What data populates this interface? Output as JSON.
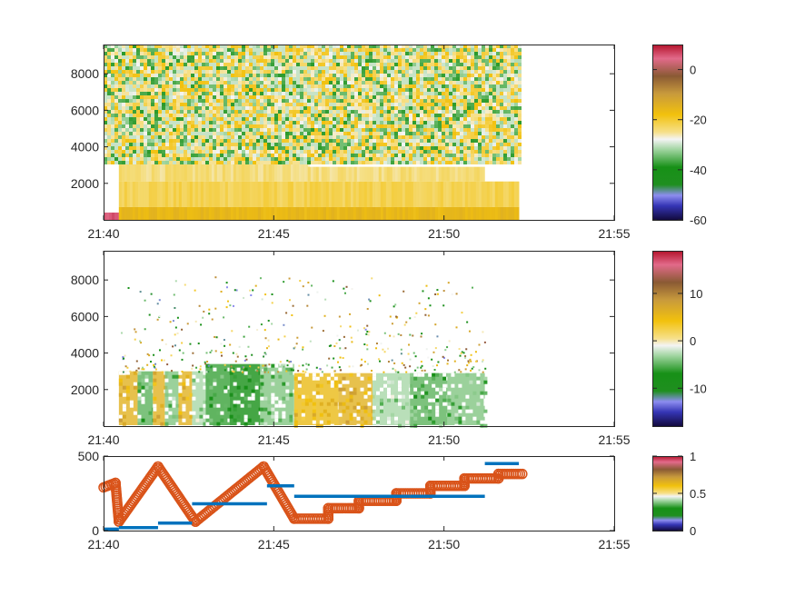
{
  "chart_data": [
    {
      "type": "heatmap",
      "x_tick_labels": [
        "21:40",
        "21:45",
        "21:50",
        "21:55"
      ],
      "x_ticks_min": [
        0,
        5,
        10,
        15
      ],
      "xlim_min": [
        0,
        15
      ],
      "y_tick_labels": [
        "2000",
        "4000",
        "6000",
        "8000"
      ],
      "y_ticks": [
        2000,
        4000,
        6000,
        8000
      ],
      "ylim": [
        0,
        9600
      ],
      "data_extent_min": [
        0,
        12.2
      ],
      "colorbar": {
        "ticks": [
          0,
          -20,
          -40,
          -60
        ],
        "tick_labels": [
          "0",
          "-20",
          "-40",
          "-60"
        ],
        "range": [
          -60,
          10
        ]
      },
      "regions": [
        {
          "x0": 0.0,
          "x1": 0.45,
          "y0": 0,
          "y1": 400,
          "v": 5
        },
        {
          "x0": 0.45,
          "x1": 12.2,
          "y0": 0,
          "y1": 700,
          "v": -16
        },
        {
          "x0": 0.45,
          "x1": 12.2,
          "y0": 700,
          "y1": 2100,
          "v": -22
        },
        {
          "x0": 0.45,
          "x1": 6.0,
          "y0": 2100,
          "y1": 3200,
          "v": -24
        },
        {
          "x0": 6.0,
          "x1": 11.2,
          "y0": 2100,
          "y1": 2900,
          "v": -24
        },
        {
          "x0": 0.0,
          "x1": 12.2,
          "y0": 3200,
          "y1": 9600,
          "v": -33,
          "noisy": true
        }
      ]
    },
    {
      "type": "heatmap",
      "x_tick_labels": [
        "21:40",
        "21:45",
        "21:50",
        "21:55"
      ],
      "x_ticks_min": [
        0,
        5,
        10,
        15
      ],
      "xlim_min": [
        0,
        15
      ],
      "y_tick_labels": [
        "2000",
        "4000",
        "6000",
        "8000"
      ],
      "y_ticks": [
        2000,
        4000,
        6000,
        8000
      ],
      "ylim": [
        0,
        9600
      ],
      "colorbar": {
        "ticks": [
          10,
          0,
          -10
        ],
        "tick_labels": [
          "10",
          "0",
          "-10"
        ],
        "range": [
          -18,
          19
        ]
      },
      "segments": [
        {
          "x0": 0.45,
          "x1": 1.0,
          "v": 6
        },
        {
          "x0": 1.0,
          "x1": 1.45,
          "v": -5
        },
        {
          "x0": 1.45,
          "x1": 1.8,
          "v": 6
        },
        {
          "x0": 1.8,
          "x1": 2.2,
          "v": -4
        },
        {
          "x0": 2.2,
          "x1": 2.6,
          "v": 6
        },
        {
          "x0": 2.6,
          "x1": 3.0,
          "v": -3
        },
        {
          "x0": 3.0,
          "x1": 3.7,
          "v": -6
        },
        {
          "x0": 3.7,
          "x1": 4.6,
          "v": -7
        },
        {
          "x0": 4.6,
          "x1": 5.6,
          "v": -4
        },
        {
          "x0": 5.6,
          "x1": 6.9,
          "v": 5
        },
        {
          "x0": 6.9,
          "x1": 7.9,
          "v": 6
        },
        {
          "x0": 7.9,
          "x1": 9.0,
          "v": -3
        },
        {
          "x0": 9.0,
          "x1": 10.1,
          "v": -5
        },
        {
          "x0": 10.1,
          "x1": 11.2,
          "v": -4
        }
      ]
    },
    {
      "type": "line",
      "x_tick_labels": [
        "21:40",
        "21:45",
        "21:50",
        "21:55"
      ],
      "x_ticks_min": [
        0,
        5,
        10,
        15
      ],
      "xlim_min": [
        0,
        15
      ],
      "y_tick_labels": [
        "0",
        "500"
      ],
      "y_ticks": [
        0,
        500
      ],
      "ylim": [
        0,
        500
      ],
      "colorbar": {
        "ticks": [
          1,
          0.5,
          0
        ],
        "tick_labels": [
          "1",
          "0.5",
          "0"
        ],
        "range": [
          0,
          1
        ]
      },
      "series": [
        {
          "kind": "steps",
          "color": "#0072bd",
          "steps": [
            {
              "x0": 0.0,
              "x1": 0.45,
              "y": 10
            },
            {
              "x0": 0.45,
              "x1": 1.6,
              "y": 20
            },
            {
              "x0": 1.6,
              "x1": 2.6,
              "y": 50
            },
            {
              "x0": 2.6,
              "x1": 4.8,
              "y": 180
            },
            {
              "x0": 4.8,
              "x1": 5.6,
              "y": 300
            },
            {
              "x0": 5.6,
              "x1": 7.9,
              "y": 230
            },
            {
              "x0": 7.9,
              "x1": 9.0,
              "y": 230
            },
            {
              "x0": 9.0,
              "x1": 11.2,
              "y": 230
            },
            {
              "x0": 11.2,
              "x1": 12.2,
              "y": 450
            }
          ]
        },
        {
          "kind": "markers",
          "color": "#d95319",
          "x": [
            0.0,
            0.35,
            0.45,
            1.6,
            2.7,
            4.7,
            5.6,
            6.6,
            6.6,
            7.5,
            7.5,
            8.6,
            8.6,
            9.6,
            9.6,
            10.6,
            10.6,
            11.6,
            11.6,
            12.3
          ],
          "y": [
            290,
            320,
            60,
            430,
            60,
            430,
            80,
            80,
            150,
            150,
            200,
            200,
            250,
            250,
            300,
            300,
            350,
            350,
            380,
            380
          ]
        }
      ]
    }
  ]
}
